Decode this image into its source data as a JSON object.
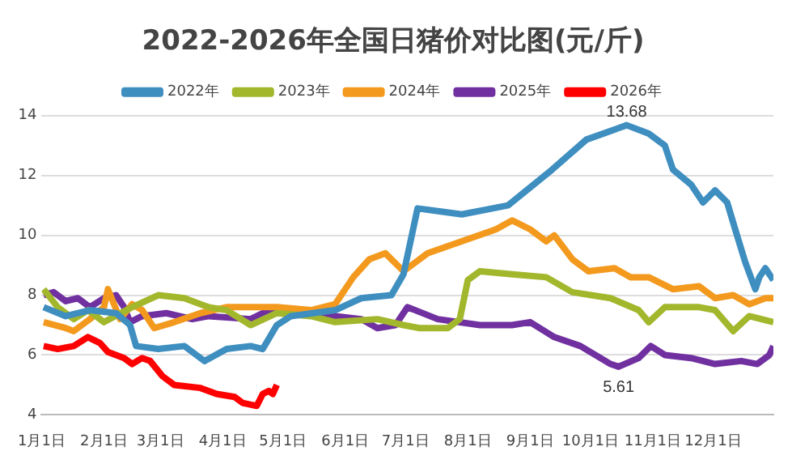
{
  "chart_data": {
    "type": "line",
    "title": "2022-2026年全国日猪价对比图(元/斤)",
    "xlim": [
      "--01-01",
      "--12-31"
    ],
    "xticks": [
      {
        "value": "--01-01",
        "label": "1月1日"
      },
      {
        "value": "--02-01",
        "label": "2月1日"
      },
      {
        "value": "--03-01",
        "label": "3月1日"
      },
      {
        "value": "--04-01",
        "label": "4月1日"
      },
      {
        "value": "--05-01",
        "label": "5月1日"
      },
      {
        "value": "--06-01",
        "label": "6月1日"
      },
      {
        "value": "--07-01",
        "label": "7月1日"
      },
      {
        "value": "--08-01",
        "label": "8月1日"
      },
      {
        "value": "--09-01",
        "label": "9月1日"
      },
      {
        "value": "--10-01",
        "label": "10月1日"
      },
      {
        "value": "--11-01",
        "label": "11月1日"
      },
      {
        "value": "--12-01",
        "label": "12月1日"
      }
    ],
    "ylim": [
      4,
      14
    ],
    "yticks": [
      4,
      6,
      8,
      10,
      12,
      14
    ],
    "grid": "y",
    "legend": "top",
    "annotations": [
      {
        "text": "13.68",
        "x": "--10-19",
        "y": 13.68
      },
      {
        "text": "5.61",
        "x": "--10-15",
        "y": 5.61
      }
    ],
    "series": [
      {
        "name": "2022年",
        "color": "#3e8ec0",
        "x": [
          "--01-02",
          "--01-13",
          "--01-25",
          "--02-07",
          "--02-14",
          "--02-17",
          "--02-28",
          "--03-13",
          "--03-23",
          "--04-03",
          "--04-15",
          "--04-21",
          "--04-28",
          "--05-05",
          "--05-27",
          "--06-09",
          "--06-24",
          "--06-30",
          "--07-07",
          "--07-29",
          "--08-21",
          "--09-12",
          "--09-29",
          "--10-19",
          "--10-30",
          "--11-07",
          "--11-11",
          "--11-20",
          "--11-26",
          "--12-02",
          "--12-08",
          "--12-12",
          "--12-17",
          "--12-22",
          "--12-24",
          "--12-27",
          "--12-31"
        ],
        "values": [
          7.6,
          7.3,
          7.5,
          7.4,
          7.0,
          6.3,
          6.2,
          6.3,
          5.8,
          6.2,
          6.3,
          6.2,
          7.0,
          7.3,
          7.5,
          7.9,
          8.0,
          8.7,
          10.9,
          10.7,
          11.0,
          12.2,
          13.2,
          13.68,
          13.4,
          13.0,
          12.2,
          11.7,
          11.1,
          11.5,
          11.1,
          10.2,
          9.1,
          8.2,
          8.6,
          8.9,
          8.5
        ]
      },
      {
        "name": "2023年",
        "color": "#a3b72c",
        "x": [
          "--01-02",
          "--01-09",
          "--01-17",
          "--01-24",
          "--02-01",
          "--02-15",
          "--02-28",
          "--03-13",
          "--03-25",
          "--04-03",
          "--04-15",
          "--04-28",
          "--05-15",
          "--05-27",
          "--06-17",
          "--06-30",
          "--07-08",
          "--07-22",
          "--07-28",
          "--08-01",
          "--08-07",
          "--08-23",
          "--09-09",
          "--09-22",
          "--10-11",
          "--10-25",
          "--10-30",
          "--11-07",
          "--11-24",
          "--12-02",
          "--12-11",
          "--12-19",
          "--12-31"
        ],
        "values": [
          8.2,
          7.6,
          7.2,
          7.5,
          7.1,
          7.6,
          8.0,
          7.9,
          7.6,
          7.5,
          7.0,
          7.4,
          7.3,
          7.1,
          7.2,
          7.0,
          6.9,
          6.9,
          7.2,
          8.5,
          8.8,
          8.7,
          8.6,
          8.1,
          7.9,
          7.5,
          7.1,
          7.6,
          7.6,
          7.5,
          6.8,
          7.3,
          7.1
        ]
      },
      {
        "name": "2024年",
        "color": "#f39a1e",
        "x": [
          "--01-02",
          "--01-13",
          "--01-17",
          "--01-25",
          "--02-01",
          "--02-03",
          "--02-09",
          "--02-15",
          "--02-20",
          "--02-26",
          "--03-08",
          "--03-21",
          "--04-03",
          "--04-28",
          "--05-15",
          "--05-27",
          "--06-05",
          "--06-13",
          "--06-21",
          "--06-30",
          "--07-12",
          "--07-29",
          "--08-15",
          "--08-23",
          "--09-01",
          "--09-09",
          "--09-13",
          "--09-22",
          "--09-30",
          "--10-13",
          "--10-21",
          "--10-30",
          "--11-11",
          "--11-24",
          "--12-02",
          "--12-11",
          "--12-19",
          "--12-27",
          "--12-31"
        ],
        "values": [
          7.1,
          6.9,
          6.8,
          7.2,
          7.6,
          8.2,
          7.2,
          7.7,
          7.5,
          6.9,
          7.1,
          7.4,
          7.6,
          7.6,
          7.5,
          7.7,
          8.6,
          9.2,
          9.4,
          8.8,
          9.4,
          9.8,
          10.2,
          10.5,
          10.2,
          9.8,
          10.0,
          9.2,
          8.8,
          8.9,
          8.6,
          8.6,
          8.2,
          8.3,
          7.9,
          8.0,
          7.7,
          7.9,
          7.9
        ]
      },
      {
        "name": "2025年",
        "color": "#7030a0",
        "x": [
          "--01-02",
          "--01-07",
          "--01-13",
          "--01-19",
          "--01-25",
          "--02-01",
          "--02-07",
          "--02-11",
          "--02-14",
          "--02-20",
          "--03-04",
          "--03-17",
          "--03-25",
          "--04-15",
          "--04-24",
          "--05-15",
          "--05-27",
          "--06-09",
          "--06-17",
          "--06-26",
          "--07-02",
          "--07-17",
          "--08-07",
          "--08-23",
          "--09-01",
          "--09-13",
          "--09-26",
          "--10-11",
          "--10-15",
          "--10-25",
          "--10-31",
          "--11-07",
          "--11-20",
          "--12-02",
          "--12-15",
          "--12-23",
          "--12-29",
          "--12-31"
        ],
        "values": [
          8.0,
          8.1,
          7.8,
          7.9,
          7.6,
          7.9,
          8.0,
          7.6,
          7.1,
          7.3,
          7.4,
          7.2,
          7.3,
          7.2,
          7.5,
          7.4,
          7.3,
          7.2,
          6.9,
          7.0,
          7.6,
          7.2,
          7.0,
          7.0,
          7.1,
          6.6,
          6.3,
          5.7,
          5.61,
          5.9,
          6.3,
          6.0,
          5.9,
          5.7,
          5.8,
          5.7,
          6.0,
          6.3
        ]
      },
      {
        "name": "2026年",
        "color": "#ff0000",
        "x": [
          "--01-02",
          "--01-09",
          "--01-17",
          "--01-24",
          "--01-30",
          "--02-03",
          "--02-11",
          "--02-15",
          "--02-20",
          "--02-24",
          "--03-02",
          "--03-08",
          "--03-21",
          "--03-29",
          "--04-07",
          "--04-11",
          "--04-18",
          "--04-21",
          "--04-24",
          "--04-26",
          "--04-28"
        ],
        "values": [
          6.3,
          6.2,
          6.3,
          6.6,
          6.4,
          6.1,
          5.9,
          5.7,
          5.9,
          5.8,
          5.3,
          5.0,
          4.9,
          4.7,
          4.6,
          4.4,
          4.3,
          4.7,
          4.8,
          4.7,
          5.0
        ]
      }
    ]
  }
}
